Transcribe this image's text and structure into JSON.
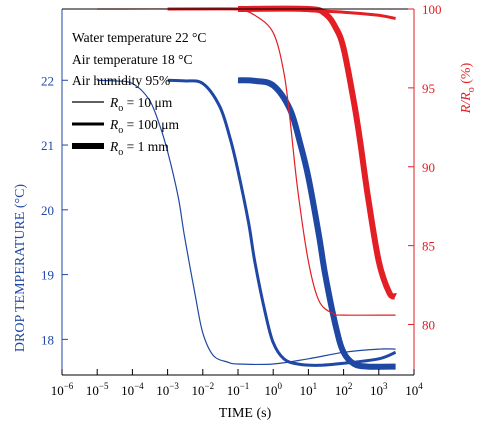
{
  "chart_data": {
    "type": "line",
    "xlabel": "TIME (s)",
    "ylabel_left": "DROP TEMPERATURE (°C)",
    "ylabel_right": "R/R",
    "ylabel_right_sub": "o",
    "ylabel_right_unit": " (%)",
    "x_scale": "log",
    "xlim": [
      1e-06,
      10000.0
    ],
    "x_ticks": [
      {
        "value": 1e-06,
        "base": "10",
        "exp": "−6"
      },
      {
        "value": 1e-05,
        "base": "10",
        "exp": "−5"
      },
      {
        "value": 0.0001,
        "base": "10",
        "exp": "−4"
      },
      {
        "value": 0.001,
        "base": "10",
        "exp": "−3"
      },
      {
        "value": 0.01,
        "base": "10",
        "exp": "−2"
      },
      {
        "value": 0.1,
        "base": "10",
        "exp": "−1"
      },
      {
        "value": 1.0,
        "base": "10",
        "exp": "0"
      },
      {
        "value": 10.0,
        "base": "10",
        "exp": "1"
      },
      {
        "value": 100.0,
        "base": "10",
        "exp": "2"
      },
      {
        "value": 1000.0,
        "base": "10",
        "exp": "3"
      },
      {
        "value": 10000.0,
        "base": "10",
        "exp": "4"
      }
    ],
    "ylim_left": [
      17.45,
      23.1
    ],
    "y_ticks_left": [
      "18",
      "19",
      "20",
      "21",
      "22"
    ],
    "ylim_right": [
      76.8,
      100
    ],
    "y_ticks_right": [
      "80",
      "85",
      "90",
      "95",
      "100"
    ],
    "annotations": [
      "Water temperature 22 °C",
      "Air temperature 18 °C",
      "Air humidity 95%"
    ],
    "legend": [
      {
        "label_pre": "R",
        "label_sub": "o",
        "label_post": " = 10 μm",
        "width": 1.2
      },
      {
        "label_pre": "R",
        "label_sub": "o",
        "label_post": " = 100 μm",
        "width": 3
      },
      {
        "label_pre": "R",
        "label_sub": "o",
        "label_post": " = 1 mm",
        "width": 6
      }
    ],
    "colors": {
      "temperature": "#1f47a4",
      "radius": "#e31e24",
      "axis": "#000000"
    },
    "series": [
      {
        "axis": "left",
        "width": 1.2,
        "points": [
          [
            1e-05,
            22.0
          ],
          [
            3e-05,
            21.99
          ],
          [
            0.0001,
            21.95
          ],
          [
            0.0003,
            21.7
          ],
          [
            0.0006,
            21.3
          ],
          [
            0.001,
            20.9
          ],
          [
            0.002,
            20.2
          ],
          [
            0.003,
            19.6
          ],
          [
            0.006,
            18.7
          ],
          [
            0.01,
            18.1
          ],
          [
            0.02,
            17.75
          ],
          [
            0.05,
            17.65
          ],
          [
            0.1,
            17.62
          ],
          [
            1,
            17.62
          ],
          [
            10,
            17.7
          ],
          [
            100,
            17.8
          ],
          [
            1000,
            17.85
          ],
          [
            3000,
            17.85
          ]
        ]
      },
      {
        "axis": "left",
        "width": 3,
        "points": [
          [
            0.001,
            22.0
          ],
          [
            0.003,
            21.99
          ],
          [
            0.01,
            21.95
          ],
          [
            0.03,
            21.6
          ],
          [
            0.06,
            21.1
          ],
          [
            0.1,
            20.6
          ],
          [
            0.2,
            19.8
          ],
          [
            0.3,
            19.2
          ],
          [
            0.6,
            18.4
          ],
          [
            1,
            17.95
          ],
          [
            2,
            17.7
          ],
          [
            5,
            17.62
          ],
          [
            20,
            17.6
          ],
          [
            100,
            17.63
          ],
          [
            1000,
            17.7
          ],
          [
            3000,
            17.8
          ]
        ]
      },
      {
        "axis": "left",
        "width": 6,
        "points": [
          [
            0.1,
            22.0
          ],
          [
            0.3,
            21.99
          ],
          [
            1,
            21.92
          ],
          [
            3,
            21.55
          ],
          [
            6,
            21.0
          ],
          [
            10,
            20.5
          ],
          [
            20,
            19.6
          ],
          [
            30,
            19.0
          ],
          [
            60,
            18.2
          ],
          [
            100,
            17.8
          ],
          [
            200,
            17.62
          ],
          [
            500,
            17.58
          ],
          [
            3000,
            17.58
          ]
        ]
      },
      {
        "axis": "right",
        "width": 1.2,
        "points": [
          [
            1e-05,
            100
          ],
          [
            0.01,
            100
          ],
          [
            0.1,
            99.95
          ],
          [
            0.3,
            99.6
          ],
          [
            1,
            98.5
          ],
          [
            2,
            96
          ],
          [
            3,
            93
          ],
          [
            5,
            88.5
          ],
          [
            10,
            84
          ],
          [
            20,
            81.5
          ],
          [
            50,
            80.7
          ],
          [
            100,
            80.6
          ],
          [
            3000,
            80.6
          ]
        ]
      },
      {
        "axis": "right",
        "width": 3,
        "points": [
          [
            0.001,
            100
          ],
          [
            1,
            100
          ],
          [
            10,
            99.9
          ],
          [
            100,
            99.8
          ],
          [
            1000,
            99.6
          ],
          [
            3000,
            99.4
          ]
        ]
      },
      {
        "axis": "right",
        "width": 6,
        "points": [
          [
            0.1,
            100
          ],
          [
            10,
            100
          ],
          [
            30,
            99.7
          ],
          [
            60,
            98.8
          ],
          [
            100,
            97.5
          ],
          [
            200,
            94
          ],
          [
            300,
            91.5
          ],
          [
            500,
            88
          ],
          [
            1000,
            84
          ],
          [
            2000,
            82
          ],
          [
            3000,
            81.8
          ]
        ]
      }
    ]
  }
}
